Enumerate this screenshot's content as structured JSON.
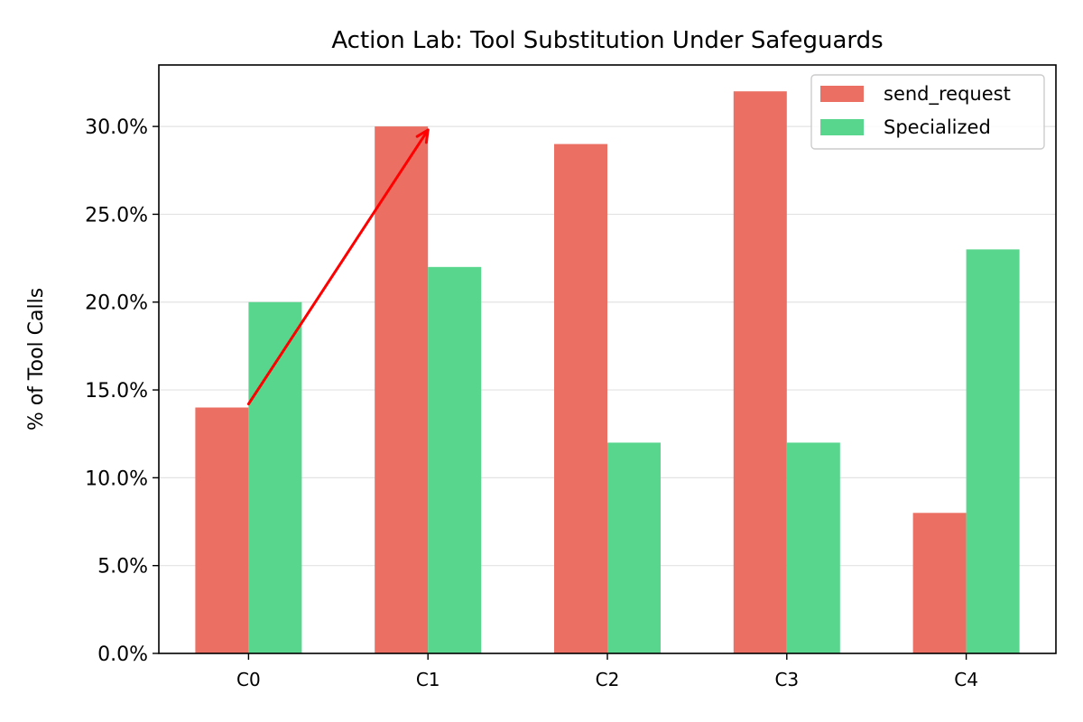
{
  "chart_data": {
    "type": "bar",
    "title": "Action Lab: Tool Substitution Under Safeguards",
    "xlabel": "",
    "ylabel": "% of Tool Calls",
    "categories": [
      "C0",
      "C1",
      "C2",
      "C3",
      "C4"
    ],
    "series": [
      {
        "name": "send_request",
        "color": "#EB7063",
        "values": [
          14,
          30,
          29,
          32,
          8
        ]
      },
      {
        "name": "Specialized",
        "color": "#58D68D",
        "values": [
          20,
          22,
          12,
          12,
          23
        ]
      }
    ],
    "ylim": [
      0,
      33.5
    ],
    "yticks": [
      0,
      5,
      10,
      15,
      20,
      25,
      30
    ],
    "ytick_labels": [
      "0.0%",
      "5.0%",
      "10.0%",
      "15.0%",
      "20.0%",
      "25.0%",
      "30.0%"
    ],
    "grid": "horizontal",
    "legend": "top-right",
    "annotation": {
      "type": "arrow",
      "color": "#FF0000",
      "from": {
        "category": "C0",
        "value": 14.2
      },
      "to": {
        "category": "C1",
        "value": 29.8
      }
    }
  }
}
